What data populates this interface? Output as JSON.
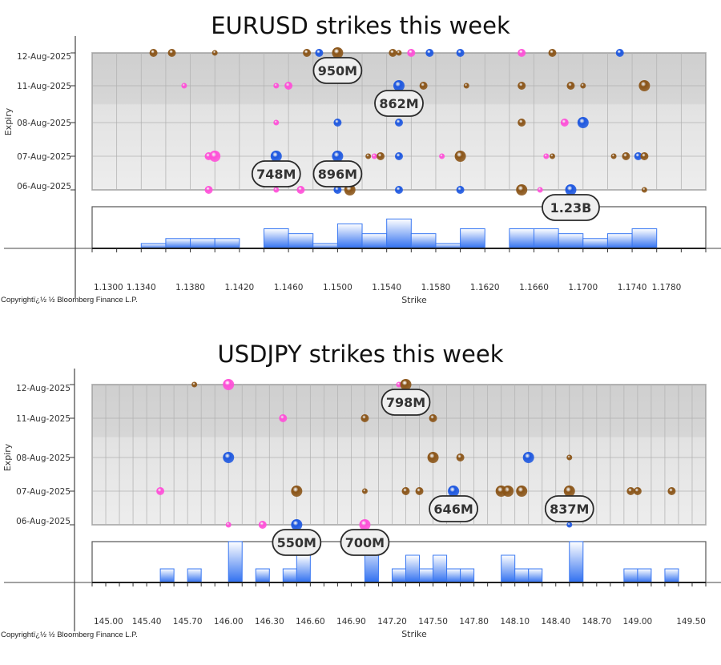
{
  "colors": {
    "brown": "#8a5417",
    "blue": "#1d57e0",
    "pink": "#ff4fd8",
    "bar": "#2f6ff0"
  },
  "chart_data": [
    {
      "type": "scatter",
      "title": "EURUSD strikes this week",
      "xlabel": "Strike",
      "ylabel": "Expiry",
      "copyright": "Copyrightï¿½ ½ Bloomberg Finance L.P.",
      "xlim": [
        1.13,
        1.18
      ],
      "xticks": [
        "1.1300",
        "1.1340",
        "1.1380",
        "1.1420",
        "1.1460",
        "1.1500",
        "1.1540",
        "1.1580",
        "1.1620",
        "1.1660",
        "1.1700",
        "1.1740",
        "1.1780"
      ],
      "expiries": [
        "12-Aug-2025",
        "11-Aug-2025",
        "08-Aug-2025",
        "07-Aug-2025",
        "06-Aug-2025"
      ],
      "grid": true,
      "points": [
        {
          "strike": 1.135,
          "expiry": "12-Aug-2025",
          "color": "brown",
          "size": "m"
        },
        {
          "strike": 1.1365,
          "expiry": "12-Aug-2025",
          "color": "brown",
          "size": "m"
        },
        {
          "strike": 1.14,
          "expiry": "12-Aug-2025",
          "color": "brown",
          "size": "s"
        },
        {
          "strike": 1.1475,
          "expiry": "12-Aug-2025",
          "color": "brown",
          "size": "m"
        },
        {
          "strike": 1.1485,
          "expiry": "12-Aug-2025",
          "color": "blue",
          "size": "m"
        },
        {
          "strike": 1.15,
          "expiry": "12-Aug-2025",
          "color": "brown",
          "size": "l"
        },
        {
          "strike": 1.1545,
          "expiry": "12-Aug-2025",
          "color": "brown",
          "size": "m"
        },
        {
          "strike": 1.155,
          "expiry": "12-Aug-2025",
          "color": "brown",
          "size": "s"
        },
        {
          "strike": 1.156,
          "expiry": "12-Aug-2025",
          "color": "pink",
          "size": "m"
        },
        {
          "strike": 1.1575,
          "expiry": "12-Aug-2025",
          "color": "blue",
          "size": "m"
        },
        {
          "strike": 1.16,
          "expiry": "12-Aug-2025",
          "color": "blue",
          "size": "m"
        },
        {
          "strike": 1.165,
          "expiry": "12-Aug-2025",
          "color": "pink",
          "size": "m"
        },
        {
          "strike": 1.1675,
          "expiry": "12-Aug-2025",
          "color": "brown",
          "size": "m"
        },
        {
          "strike": 1.173,
          "expiry": "12-Aug-2025",
          "color": "blue",
          "size": "m"
        },
        {
          "strike": 1.1375,
          "expiry": "11-Aug-2025",
          "color": "pink",
          "size": "s"
        },
        {
          "strike": 1.145,
          "expiry": "11-Aug-2025",
          "color": "pink",
          "size": "s"
        },
        {
          "strike": 1.146,
          "expiry": "11-Aug-2025",
          "color": "pink",
          "size": "m"
        },
        {
          "strike": 1.155,
          "expiry": "11-Aug-2025",
          "color": "blue",
          "size": "l"
        },
        {
          "strike": 1.157,
          "expiry": "11-Aug-2025",
          "color": "brown",
          "size": "m"
        },
        {
          "strike": 1.1605,
          "expiry": "11-Aug-2025",
          "color": "brown",
          "size": "s"
        },
        {
          "strike": 1.165,
          "expiry": "11-Aug-2025",
          "color": "brown",
          "size": "m"
        },
        {
          "strike": 1.169,
          "expiry": "11-Aug-2025",
          "color": "brown",
          "size": "m"
        },
        {
          "strike": 1.17,
          "expiry": "11-Aug-2025",
          "color": "brown",
          "size": "s"
        },
        {
          "strike": 1.175,
          "expiry": "11-Aug-2025",
          "color": "brown",
          "size": "l"
        },
        {
          "strike": 1.145,
          "expiry": "08-Aug-2025",
          "color": "pink",
          "size": "s"
        },
        {
          "strike": 1.15,
          "expiry": "08-Aug-2025",
          "color": "blue",
          "size": "m"
        },
        {
          "strike": 1.155,
          "expiry": "08-Aug-2025",
          "color": "blue",
          "size": "m"
        },
        {
          "strike": 1.165,
          "expiry": "08-Aug-2025",
          "color": "brown",
          "size": "m"
        },
        {
          "strike": 1.1685,
          "expiry": "08-Aug-2025",
          "color": "pink",
          "size": "m"
        },
        {
          "strike": 1.17,
          "expiry": "08-Aug-2025",
          "color": "blue",
          "size": "l"
        },
        {
          "strike": 1.1395,
          "expiry": "07-Aug-2025",
          "color": "pink",
          "size": "m"
        },
        {
          "strike": 1.14,
          "expiry": "07-Aug-2025",
          "color": "pink",
          "size": "l"
        },
        {
          "strike": 1.145,
          "expiry": "07-Aug-2025",
          "color": "blue",
          "size": "l"
        },
        {
          "strike": 1.15,
          "expiry": "07-Aug-2025",
          "color": "blue",
          "size": "l"
        },
        {
          "strike": 1.1525,
          "expiry": "07-Aug-2025",
          "color": "brown",
          "size": "s"
        },
        {
          "strike": 1.153,
          "expiry": "07-Aug-2025",
          "color": "pink",
          "size": "s"
        },
        {
          "strike": 1.1535,
          "expiry": "07-Aug-2025",
          "color": "brown",
          "size": "m"
        },
        {
          "strike": 1.155,
          "expiry": "07-Aug-2025",
          "color": "blue",
          "size": "m"
        },
        {
          "strike": 1.1585,
          "expiry": "07-Aug-2025",
          "color": "pink",
          "size": "s"
        },
        {
          "strike": 1.16,
          "expiry": "07-Aug-2025",
          "color": "brown",
          "size": "l"
        },
        {
          "strike": 1.167,
          "expiry": "07-Aug-2025",
          "color": "pink",
          "size": "s"
        },
        {
          "strike": 1.1675,
          "expiry": "07-Aug-2025",
          "color": "brown",
          "size": "s"
        },
        {
          "strike": 1.1725,
          "expiry": "07-Aug-2025",
          "color": "brown",
          "size": "s"
        },
        {
          "strike": 1.1735,
          "expiry": "07-Aug-2025",
          "color": "brown",
          "size": "m"
        },
        {
          "strike": 1.1745,
          "expiry": "07-Aug-2025",
          "color": "blue",
          "size": "m"
        },
        {
          "strike": 1.175,
          "expiry": "07-Aug-2025",
          "color": "brown",
          "size": "m"
        },
        {
          "strike": 1.1395,
          "expiry": "06-Aug-2025",
          "color": "pink",
          "size": "m"
        },
        {
          "strike": 1.145,
          "expiry": "06-Aug-2025",
          "color": "pink",
          "size": "s"
        },
        {
          "strike": 1.147,
          "expiry": "06-Aug-2025",
          "color": "pink",
          "size": "m"
        },
        {
          "strike": 1.15,
          "expiry": "06-Aug-2025",
          "color": "blue",
          "size": "m"
        },
        {
          "strike": 1.151,
          "expiry": "06-Aug-2025",
          "color": "brown",
          "size": "l"
        },
        {
          "strike": 1.155,
          "expiry": "06-Aug-2025",
          "color": "blue",
          "size": "m"
        },
        {
          "strike": 1.16,
          "expiry": "06-Aug-2025",
          "color": "blue",
          "size": "m"
        },
        {
          "strike": 1.165,
          "expiry": "06-Aug-2025",
          "color": "brown",
          "size": "l"
        },
        {
          "strike": 1.1665,
          "expiry": "06-Aug-2025",
          "color": "pink",
          "size": "s"
        },
        {
          "strike": 1.169,
          "expiry": "06-Aug-2025",
          "color": "blue",
          "size": "l"
        },
        {
          "strike": 1.175,
          "expiry": "06-Aug-2025",
          "color": "brown",
          "size": "s"
        }
      ],
      "callouts": [
        {
          "strike": 1.15,
          "expiry": "12-Aug-2025",
          "text": "950M"
        },
        {
          "strike": 1.155,
          "expiry": "11-Aug-2025",
          "text": "862M"
        },
        {
          "strike": 1.145,
          "expiry": "07-Aug-2025",
          "text": "748M"
        },
        {
          "strike": 1.15,
          "expiry": "07-Aug-2025",
          "text": "896M"
        },
        {
          "strike": 1.169,
          "expiry": "06-Aug-2025",
          "text": "1.23B"
        }
      ],
      "histogram": {
        "bin_width": 0.002,
        "bins": [
          {
            "start": 1.134,
            "count": 1
          },
          {
            "start": 1.136,
            "count": 2
          },
          {
            "start": 1.138,
            "count": 2
          },
          {
            "start": 1.14,
            "count": 2
          },
          {
            "start": 1.144,
            "count": 4
          },
          {
            "start": 1.146,
            "count": 3
          },
          {
            "start": 1.148,
            "count": 1
          },
          {
            "start": 1.15,
            "count": 5
          },
          {
            "start": 1.152,
            "count": 3
          },
          {
            "start": 1.154,
            "count": 6
          },
          {
            "start": 1.156,
            "count": 3
          },
          {
            "start": 1.158,
            "count": 1
          },
          {
            "start": 1.16,
            "count": 4
          },
          {
            "start": 1.164,
            "count": 4
          },
          {
            "start": 1.166,
            "count": 4
          },
          {
            "start": 1.168,
            "count": 3
          },
          {
            "start": 1.17,
            "count": 2
          },
          {
            "start": 1.172,
            "count": 3
          },
          {
            "start": 1.174,
            "count": 4
          }
        ]
      }
    },
    {
      "type": "scatter",
      "title": "USDJPY strikes this week",
      "xlabel": "Strike",
      "ylabel": "Expiry",
      "copyright": "Copyrightï¿½ ½ Bloomberg Finance L.P.",
      "xlim": [
        145.0,
        149.5
      ],
      "xticks": [
        "145.00",
        "145.40",
        "145.70",
        "146.00",
        "146.30",
        "146.60",
        "146.90",
        "147.20",
        "147.50",
        "147.80",
        "148.10",
        "148.40",
        "148.70",
        "149.00",
        "149.50"
      ],
      "expiries": [
        "12-Aug-2025",
        "11-Aug-2025",
        "08-Aug-2025",
        "07-Aug-2025",
        "06-Aug-2025"
      ],
      "grid": true,
      "points": [
        {
          "strike": 145.75,
          "expiry": "12-Aug-2025",
          "color": "brown",
          "size": "s"
        },
        {
          "strike": 146.0,
          "expiry": "12-Aug-2025",
          "color": "pink",
          "size": "l"
        },
        {
          "strike": 147.25,
          "expiry": "12-Aug-2025",
          "color": "pink",
          "size": "s"
        },
        {
          "strike": 147.3,
          "expiry": "12-Aug-2025",
          "color": "brown",
          "size": "l"
        },
        {
          "strike": 146.4,
          "expiry": "11-Aug-2025",
          "color": "pink",
          "size": "m"
        },
        {
          "strike": 147.0,
          "expiry": "11-Aug-2025",
          "color": "brown",
          "size": "m"
        },
        {
          "strike": 147.5,
          "expiry": "11-Aug-2025",
          "color": "brown",
          "size": "m"
        },
        {
          "strike": 146.0,
          "expiry": "08-Aug-2025",
          "color": "blue",
          "size": "l"
        },
        {
          "strike": 147.5,
          "expiry": "08-Aug-2025",
          "color": "brown",
          "size": "l"
        },
        {
          "strike": 147.7,
          "expiry": "08-Aug-2025",
          "color": "brown",
          "size": "m"
        },
        {
          "strike": 148.2,
          "expiry": "08-Aug-2025",
          "color": "blue",
          "size": "l"
        },
        {
          "strike": 148.5,
          "expiry": "08-Aug-2025",
          "color": "brown",
          "size": "s"
        },
        {
          "strike": 145.5,
          "expiry": "07-Aug-2025",
          "color": "pink",
          "size": "m"
        },
        {
          "strike": 146.5,
          "expiry": "07-Aug-2025",
          "color": "brown",
          "size": "l"
        },
        {
          "strike": 147.0,
          "expiry": "07-Aug-2025",
          "color": "brown",
          "size": "s"
        },
        {
          "strike": 147.3,
          "expiry": "07-Aug-2025",
          "color": "brown",
          "size": "m"
        },
        {
          "strike": 147.4,
          "expiry": "07-Aug-2025",
          "color": "brown",
          "size": "m"
        },
        {
          "strike": 147.65,
          "expiry": "07-Aug-2025",
          "color": "blue",
          "size": "l"
        },
        {
          "strike": 148.0,
          "expiry": "07-Aug-2025",
          "color": "brown",
          "size": "l"
        },
        {
          "strike": 148.05,
          "expiry": "07-Aug-2025",
          "color": "brown",
          "size": "l"
        },
        {
          "strike": 148.15,
          "expiry": "07-Aug-2025",
          "color": "brown",
          "size": "l"
        },
        {
          "strike": 148.5,
          "expiry": "07-Aug-2025",
          "color": "brown",
          "size": "l"
        },
        {
          "strike": 148.95,
          "expiry": "07-Aug-2025",
          "color": "brown",
          "size": "m"
        },
        {
          "strike": 149.0,
          "expiry": "07-Aug-2025",
          "color": "brown",
          "size": "m"
        },
        {
          "strike": 149.25,
          "expiry": "07-Aug-2025",
          "color": "brown",
          "size": "m"
        },
        {
          "strike": 146.0,
          "expiry": "06-Aug-2025",
          "color": "pink",
          "size": "s"
        },
        {
          "strike": 146.25,
          "expiry": "06-Aug-2025",
          "color": "pink",
          "size": "m"
        },
        {
          "strike": 146.5,
          "expiry": "06-Aug-2025",
          "color": "blue",
          "size": "l"
        },
        {
          "strike": 147.0,
          "expiry": "06-Aug-2025",
          "color": "pink",
          "size": "l"
        },
        {
          "strike": 148.5,
          "expiry": "06-Aug-2025",
          "color": "blue",
          "size": "s"
        }
      ],
      "callouts": [
        {
          "strike": 147.3,
          "expiry": "12-Aug-2025",
          "text": "798M"
        },
        {
          "strike": 147.65,
          "expiry": "07-Aug-2025",
          "text": "646M"
        },
        {
          "strike": 148.5,
          "expiry": "07-Aug-2025",
          "text": "837M"
        },
        {
          "strike": 146.5,
          "expiry": "06-Aug-2025",
          "text": "550M"
        },
        {
          "strike": 147.0,
          "expiry": "06-Aug-2025",
          "text": "700M"
        }
      ],
      "histogram": {
        "bin_width": 0.1,
        "bins": [
          {
            "start": 145.5,
            "count": 1
          },
          {
            "start": 145.7,
            "count": 1
          },
          {
            "start": 146.0,
            "count": 3
          },
          {
            "start": 146.2,
            "count": 1
          },
          {
            "start": 146.4,
            "count": 1
          },
          {
            "start": 146.5,
            "count": 2
          },
          {
            "start": 147.0,
            "count": 3
          },
          {
            "start": 147.2,
            "count": 1
          },
          {
            "start": 147.3,
            "count": 2
          },
          {
            "start": 147.4,
            "count": 1
          },
          {
            "start": 147.5,
            "count": 2
          },
          {
            "start": 147.6,
            "count": 1
          },
          {
            "start": 147.7,
            "count": 1
          },
          {
            "start": 148.0,
            "count": 2
          },
          {
            "start": 148.1,
            "count": 1
          },
          {
            "start": 148.2,
            "count": 1
          },
          {
            "start": 148.5,
            "count": 3
          },
          {
            "start": 148.9,
            "count": 1
          },
          {
            "start": 149.0,
            "count": 1
          },
          {
            "start": 149.2,
            "count": 1
          }
        ]
      }
    }
  ]
}
